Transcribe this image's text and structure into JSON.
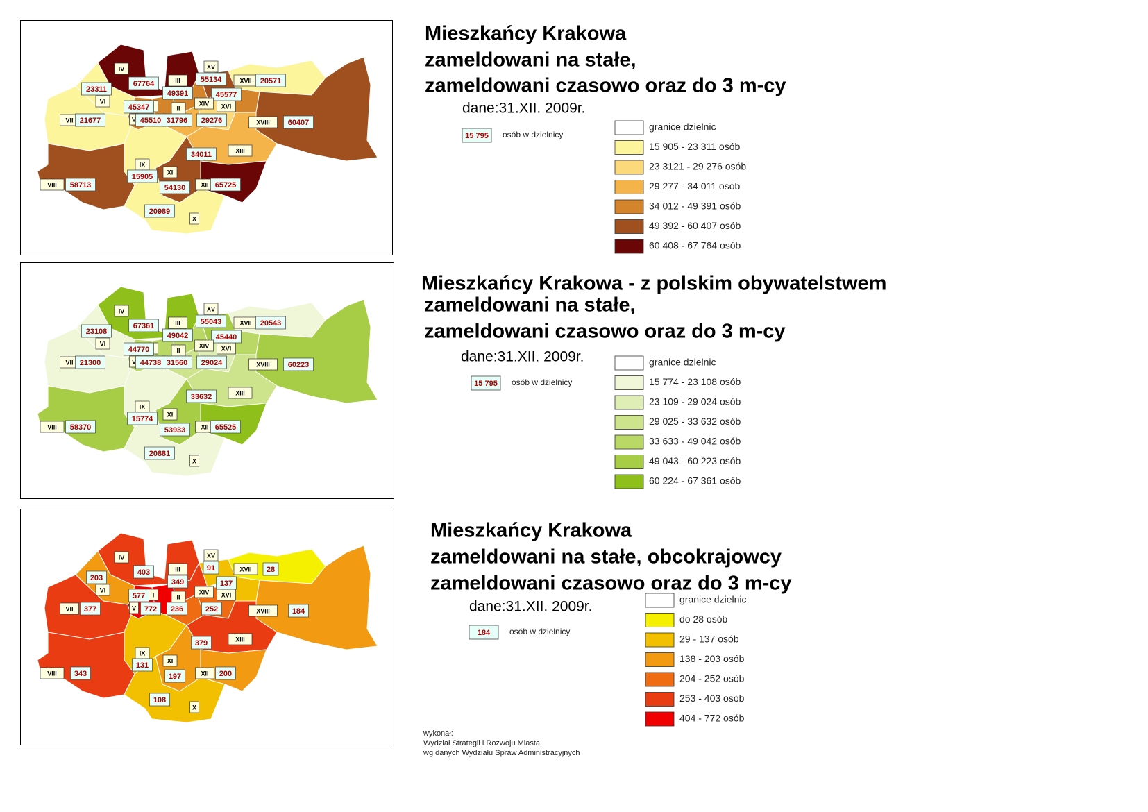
{
  "panels": [
    {
      "title": [
        "Mieszkańcy Krakowa",
        "zameldowani na stałe,",
        "zameldowani czasowo oraz do 3 m-cy"
      ],
      "date": "dane:31.XII. 2009r.",
      "sample_value": "15 795",
      "sample_label": "osób w dzielnicy",
      "legend": [
        {
          "label": "granice dzielnic",
          "color": "#ffffff"
        },
        {
          "label": "15 905 - 23 311 osób",
          "color": "#fdf59c"
        },
        {
          "label": "23 3121 - 29 276 osób",
          "color": "#fcd97a"
        },
        {
          "label": "29 277 - 34 011 osób",
          "color": "#f5b449"
        },
        {
          "label": "34 012 - 49 391 osób",
          "color": "#d4842a"
        },
        {
          "label": "49 392 - 60 407 osób",
          "color": "#a0501e"
        },
        {
          "label": "60 408 - 67 764 osób",
          "color": "#6b0606"
        }
      ],
      "districts": [
        {
          "numeral": "VII",
          "value": 21677,
          "color": "#fdf59c"
        },
        {
          "numeral": "VI",
          "value": 23311,
          "color": "#fdf59c"
        },
        {
          "numeral": "IV",
          "value": 67764,
          "color": "#6b0606"
        },
        {
          "numeral": "V",
          "value": 45510,
          "color": "#d4842a"
        },
        {
          "numeral": "I",
          "value": 45347,
          "color": "#d4842a"
        },
        {
          "numeral": "III",
          "value": 49391,
          "color": "#d4842a"
        },
        {
          "numeral": "II",
          "value": 31796,
          "color": "#f5b449"
        },
        {
          "numeral": "XV",
          "value": 55134,
          "color": "#a0501e"
        },
        {
          "numeral": "XVI",
          "value": 45577,
          "color": "#d4842a"
        },
        {
          "numeral": "XIV",
          "value": 29276,
          "color": "#fcd97a"
        },
        {
          "numeral": "XVII",
          "value": 20571,
          "color": "#fdf59c"
        },
        {
          "numeral": "XVIII",
          "value": 60407,
          "color": "#a0501e"
        },
        {
          "numeral": "XIII",
          "value": 34011,
          "color": "#f5b449"
        },
        {
          "numeral": "IX",
          "value": 15905,
          "color": "#fdf59c"
        },
        {
          "numeral": "VIII",
          "value": 58713,
          "color": "#a0501e"
        },
        {
          "numeral": "XI",
          "value": 54130,
          "color": "#a0501e"
        },
        {
          "numeral": "XII",
          "value": 65725,
          "color": "#6b0606"
        },
        {
          "numeral": "X",
          "value": 20989,
          "color": "#fdf59c"
        }
      ]
    },
    {
      "title": [
        "Mieszkańcy Krakowa - z polskim obywatelstwem",
        "zameldowani na stałe,",
        "zameldowani czasowo oraz do 3 m-cy"
      ],
      "date": "dane:31.XII. 2009r.",
      "sample_value": "15 795",
      "sample_label": "osób w dzielnicy",
      "legend": [
        {
          "label": "granice dzielnic",
          "color": "#ffffff"
        },
        {
          "label": "15 774 - 23 108 osób",
          "color": "#f0f7d8"
        },
        {
          "label": "23 109 - 29 024 osób",
          "color": "#dfeeb4"
        },
        {
          "label": "29 025 - 33 632 osób",
          "color": "#cde38c"
        },
        {
          "label": "33 633 - 49 042 osób",
          "color": "#b9d865"
        },
        {
          "label": "49 043 - 60 223 osób",
          "color": "#a7cc45"
        },
        {
          "label": "60 224 - 67 361 osób",
          "color": "#8fbf1a"
        }
      ],
      "districts": [
        {
          "numeral": "VII",
          "value": 21300,
          "color": "#f0f7d8"
        },
        {
          "numeral": "VI",
          "value": 23108,
          "color": "#f0f7d8"
        },
        {
          "numeral": "IV",
          "value": 67361,
          "color": "#8fbf1a"
        },
        {
          "numeral": "V",
          "value": 44738,
          "color": "#b9d865"
        },
        {
          "numeral": "I",
          "value": 44770,
          "color": "#b9d865"
        },
        {
          "numeral": "III",
          "value": 49042,
          "color": "#b9d865"
        },
        {
          "numeral": "II",
          "value": 31560,
          "color": "#cde38c"
        },
        {
          "numeral": "XV",
          "value": 55043,
          "color": "#a7cc45"
        },
        {
          "numeral": "XVI",
          "value": 45440,
          "color": "#b9d865"
        },
        {
          "numeral": "XIV",
          "value": 29024,
          "color": "#dfeeb4"
        },
        {
          "numeral": "XVII",
          "value": 20543,
          "color": "#f0f7d8"
        },
        {
          "numeral": "XVIII",
          "value": 60223,
          "color": "#a7cc45"
        },
        {
          "numeral": "XIII",
          "value": 33632,
          "color": "#cde38c"
        },
        {
          "numeral": "IX",
          "value": 15774,
          "color": "#f0f7d8"
        },
        {
          "numeral": "VIII",
          "value": 58370,
          "color": "#a7cc45"
        },
        {
          "numeral": "XI",
          "value": 53933,
          "color": "#a7cc45"
        },
        {
          "numeral": "XII",
          "value": 65525,
          "color": "#8fbf1a"
        },
        {
          "numeral": "X",
          "value": 20881,
          "color": "#f0f7d8"
        }
      ]
    },
    {
      "title": [
        "Mieszkańcy Krakowa",
        "zameldowani na stałe, obcokrajowcy",
        "zameldowani czasowo oraz do 3 m-cy"
      ],
      "date": "dane:31.XII. 2009r.",
      "sample_value": "184",
      "sample_label": "osób w dzielnicy",
      "legend": [
        {
          "label": "granice dzielnic",
          "color": "#ffffff"
        },
        {
          "label": "do 28 osób",
          "color": "#f5f000"
        },
        {
          "label": "29 - 137 osób",
          "color": "#f3c000"
        },
        {
          "label": "138 - 203 osób",
          "color": "#f29a12"
        },
        {
          "label": "204 - 252 osób",
          "color": "#f06c12"
        },
        {
          "label": "253 - 403 osób",
          "color": "#ea3c12"
        },
        {
          "label": "404 - 772 osób",
          "color": "#f00000"
        }
      ],
      "districts": [
        {
          "numeral": "VII",
          "value": 377,
          "color": "#ea3c12"
        },
        {
          "numeral": "VI",
          "value": 203,
          "color": "#f29a12"
        },
        {
          "numeral": "IV",
          "value": 403,
          "color": "#ea3c12"
        },
        {
          "numeral": "V",
          "value": 772,
          "color": "#f00000"
        },
        {
          "numeral": "I",
          "value": 577,
          "color": "#f00000"
        },
        {
          "numeral": "III",
          "value": 349,
          "color": "#ea3c12"
        },
        {
          "numeral": "II",
          "value": 236,
          "color": "#f06c12"
        },
        {
          "numeral": "XV",
          "value": 91,
          "color": "#f3c000"
        },
        {
          "numeral": "XVI",
          "value": 137,
          "color": "#f3c000"
        },
        {
          "numeral": "XIV",
          "value": 252,
          "color": "#f06c12"
        },
        {
          "numeral": "XVII",
          "value": 28,
          "color": "#f5f000"
        },
        {
          "numeral": "XVIII",
          "value": 184,
          "color": "#f29a12"
        },
        {
          "numeral": "XIII",
          "value": 379,
          "color": "#ea3c12"
        },
        {
          "numeral": "IX",
          "value": 131,
          "color": "#f3c000"
        },
        {
          "numeral": "VIII",
          "value": 343,
          "color": "#ea3c12"
        },
        {
          "numeral": "XI",
          "value": 197,
          "color": "#f29a12"
        },
        {
          "numeral": "XII",
          "value": 200,
          "color": "#f29a12"
        },
        {
          "numeral": "X",
          "value": 108,
          "color": "#f3c000"
        }
      ]
    }
  ],
  "footer": [
    "wykonał:",
    "Wydział Strategii i Rozwoju Miasta",
    "wg danych Wydziału Spraw Administracyjnych"
  ]
}
